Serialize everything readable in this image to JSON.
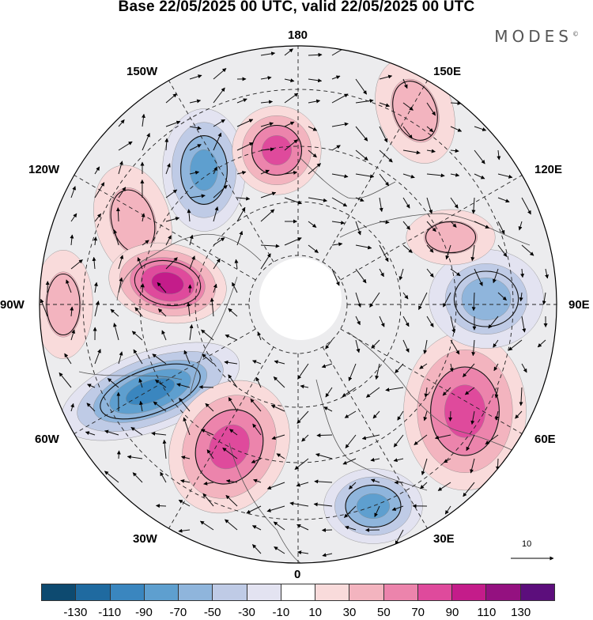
{
  "title": "Base 22/05/2025 00 UTC, valid 22/05/2025 00 UTC",
  "brand": "MODES",
  "brand_mark": "©",
  "longitude_labels": {
    "n180": "180",
    "e150": "150E",
    "e120": "120E",
    "e90": "90E",
    "e60": "60E",
    "e30": "30E",
    "s0": "0",
    "w30": "30W",
    "w60": "60W",
    "w90": "90W",
    "w120": "120W",
    "w150": "150W"
  },
  "vector_scale_label": "10",
  "colorbar": {
    "colors": [
      "#0d4a70",
      "#1f6aa0",
      "#3a86bf",
      "#5e9fcf",
      "#8fb5dc",
      "#bfcbe6",
      "#e3e3f1",
      "#ffffff",
      "#f9dbdb",
      "#f3b4bf",
      "#ec84ac",
      "#df4a9c",
      "#c41c8a",
      "#941180",
      "#5c0e7c"
    ],
    "ticks": [
      "-130",
      "-110",
      "-90",
      "-70",
      "-50",
      "-30",
      "-10",
      "10",
      "30",
      "50",
      "70",
      "90",
      "110",
      "130"
    ]
  },
  "anomaly_centers": [
    {
      "region": "north-pacific-low",
      "value": -70
    },
    {
      "region": "bering-high",
      "value": 70
    },
    {
      "region": "east-siberia-high",
      "value": 40
    },
    {
      "region": "alaska-high",
      "value": 40
    },
    {
      "region": "canada-high",
      "value": 90
    },
    {
      "region": "hudson-west-high",
      "value": 30
    },
    {
      "region": "labrador-low",
      "value": -90
    },
    {
      "region": "north-atlantic-high",
      "value": 80
    },
    {
      "region": "europe-low",
      "value": -70
    },
    {
      "region": "west-siberia-high",
      "value": 80
    },
    {
      "region": "central-siberia-low",
      "value": -60
    },
    {
      "region": "mongolia-high",
      "value": 40
    }
  ]
}
